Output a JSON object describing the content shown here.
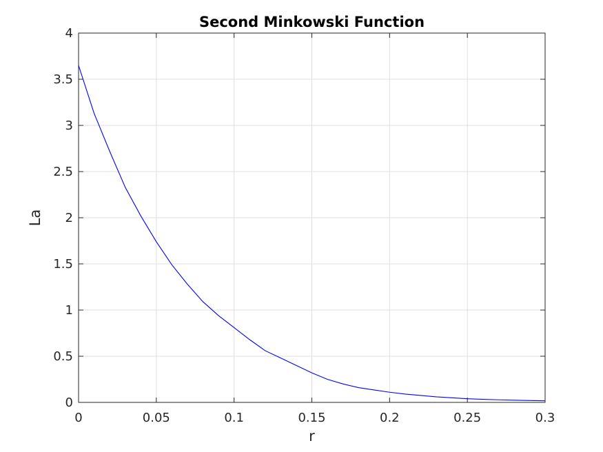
{
  "chart_data": {
    "type": "line",
    "title": "Second Minkowski Function",
    "xlabel": "r",
    "ylabel": "La",
    "xlim": [
      0,
      0.3
    ],
    "ylim": [
      0,
      4
    ],
    "xticks": [
      0,
      0.05,
      0.1,
      0.15,
      0.2,
      0.25,
      0.3
    ],
    "xtick_labels": [
      "0",
      "0.05",
      "0.1",
      "0.15",
      "0.2",
      "0.25",
      "0.3"
    ],
    "yticks": [
      0,
      0.5,
      1,
      1.5,
      2,
      2.5,
      3,
      3.5,
      4
    ],
    "ytick_labels": [
      "0",
      "0.5",
      "1",
      "1.5",
      "2",
      "2.5",
      "3",
      "3.5",
      "4"
    ],
    "grid": true,
    "series": [
      {
        "color": "#0000ff",
        "x": [
          0,
          0.01,
          0.02,
          0.03,
          0.04,
          0.05,
          0.06,
          0.07,
          0.08,
          0.09,
          0.1,
          0.11,
          0.12,
          0.13,
          0.14,
          0.15,
          0.16,
          0.17,
          0.18,
          0.19,
          0.2,
          0.21,
          0.22,
          0.23,
          0.24,
          0.25,
          0.26,
          0.27,
          0.28,
          0.29,
          0.3
        ],
        "y": [
          3.65,
          3.13,
          2.72,
          2.33,
          2.02,
          1.74,
          1.49,
          1.28,
          1.09,
          0.94,
          0.81,
          0.68,
          0.56,
          0.48,
          0.4,
          0.32,
          0.25,
          0.2,
          0.16,
          0.135,
          0.11,
          0.09,
          0.075,
          0.06,
          0.05,
          0.04,
          0.033,
          0.028,
          0.024,
          0.02,
          0.017
        ]
      }
    ]
  }
}
